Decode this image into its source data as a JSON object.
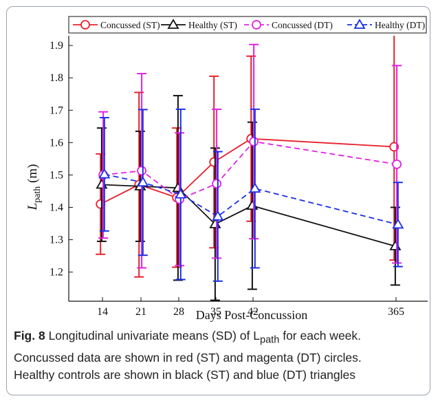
{
  "chart_data": {
    "type": "line",
    "xlabel": "Days Post-Concussion",
    "ylabel_main": "L",
    "ylabel_sub": "path",
    "ylabel_unit": " (m)",
    "x_categories": [
      "14",
      "21",
      "28",
      "35",
      "42",
      "365"
    ],
    "y_ticks": [
      "1.2",
      "1.3",
      "1.4",
      "1.5",
      "1.6",
      "1.7",
      "1.8",
      "1.9"
    ],
    "ylim": [
      1.11,
      1.93
    ],
    "legend_placement": "top",
    "series": [
      {
        "name": "Concussed (ST)",
        "color": "#e8202a",
        "dash": false,
        "marker": "circle",
        "x_offset": -0.05,
        "values": [
          1.41,
          1.47,
          1.43,
          1.54,
          1.612,
          1.587
        ],
        "sd": [
          0.155,
          0.285,
          0.215,
          0.265,
          0.255,
          0.35
        ]
      },
      {
        "name": "Healthy (ST)",
        "color": "#111111",
        "dash": false,
        "marker": "triangle",
        "x_offset": -0.02,
        "values": [
          1.47,
          1.465,
          1.46,
          1.348,
          1.405,
          1.28
        ],
        "sd": [
          0.175,
          0.17,
          0.285,
          0.235,
          0.258,
          0.12
        ]
      },
      {
        "name": "Concussed (DT)",
        "color": "#e020e0",
        "dash": true,
        "marker": "circle",
        "x_offset": 0.02,
        "values": [
          1.5,
          1.513,
          1.425,
          1.473,
          1.603,
          1.533
        ],
        "sd": [
          0.195,
          0.3,
          0.205,
          0.23,
          0.3,
          0.305
        ]
      },
      {
        "name": "Healthy (DT)",
        "color": "#1a2ee8",
        "dash": true,
        "marker": "triangle",
        "x_offset": 0.05,
        "values": [
          1.502,
          1.477,
          1.44,
          1.372,
          1.458,
          1.347
        ],
        "sd": [
          0.175,
          0.225,
          0.263,
          0.2,
          0.245,
          0.13
        ]
      }
    ]
  },
  "caption": {
    "fig_label": "Fig. 8",
    "line1": " Longitudinal univariate means (SD) of L",
    "line1_sub": "path",
    "line1_end": " for each week.",
    "line2": "Concussed data are shown in red (ST) and magenta (DT) circles.",
    "line3": "Healthy controls are shown in black (ST) and blue (DT) triangles"
  }
}
